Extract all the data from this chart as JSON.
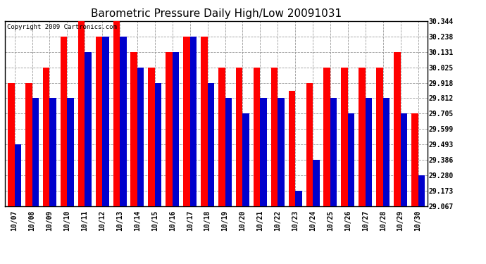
{
  "title": "Barometric Pressure Daily High/Low 20091031",
  "copyright": "Copyright 2009 Cartronics.com",
  "dates": [
    "10/07",
    "10/08",
    "10/09",
    "10/10",
    "10/11",
    "10/12",
    "10/13",
    "10/14",
    "10/15",
    "10/16",
    "10/17",
    "10/18",
    "10/19",
    "10/20",
    "10/21",
    "10/22",
    "10/23",
    "10/24",
    "10/25",
    "10/26",
    "10/27",
    "10/28",
    "10/29",
    "10/30"
  ],
  "highs": [
    29.918,
    29.918,
    30.025,
    30.238,
    30.344,
    30.238,
    30.344,
    30.131,
    30.025,
    30.131,
    30.238,
    30.238,
    30.025,
    30.025,
    30.025,
    30.025,
    29.864,
    29.918,
    30.025,
    30.025,
    30.025,
    30.025,
    30.131,
    29.705
  ],
  "lows": [
    29.493,
    29.812,
    29.812,
    29.812,
    30.131,
    30.238,
    30.238,
    30.025,
    29.918,
    30.131,
    30.238,
    29.918,
    29.812,
    29.705,
    29.812,
    29.812,
    29.173,
    29.386,
    29.812,
    29.705,
    29.812,
    29.812,
    29.705,
    29.28
  ],
  "high_color": "#ff0000",
  "low_color": "#0000cc",
  "bg_color": "#ffffff",
  "grid_color": "#999999",
  "yticks": [
    29.067,
    29.173,
    29.28,
    29.386,
    29.493,
    29.599,
    29.705,
    29.812,
    29.918,
    30.025,
    30.131,
    30.238,
    30.344
  ],
  "ymin": 29.067,
  "ymax": 30.344,
  "title_fontsize": 11,
  "tick_fontsize": 7,
  "copyright_fontsize": 6.5,
  "bar_width": 0.38
}
